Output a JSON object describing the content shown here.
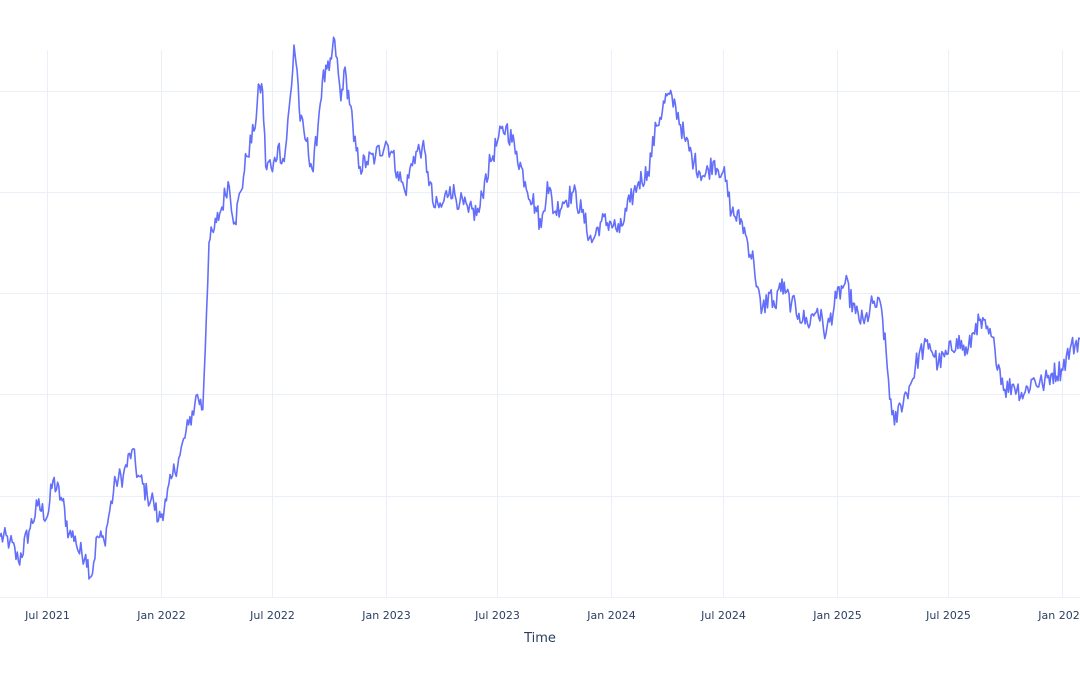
{
  "chart_data": {
    "type": "line",
    "title": "",
    "xlabel": "Time",
    "ylabel": "",
    "grid": true,
    "legend": "none",
    "xlim": [
      "2021-04-15",
      "2026-01-31"
    ],
    "ylim": [
      0,
      55
    ],
    "x_ticks": [
      {
        "date": "2021-07-01",
        "label": "Jul 2021"
      },
      {
        "date": "2022-01-01",
        "label": "Jan 2022"
      },
      {
        "date": "2022-07-01",
        "label": "Jul 2022"
      },
      {
        "date": "2023-01-01",
        "label": "Jan 2023"
      },
      {
        "date": "2023-07-01",
        "label": "Jul 2023"
      },
      {
        "date": "2024-01-01",
        "label": "Jan 2024"
      },
      {
        "date": "2024-07-01",
        "label": "Jul 2024"
      },
      {
        "date": "2025-01-01",
        "label": "Jan 2025"
      },
      {
        "date": "2025-07-01",
        "label": "Jul 2025"
      },
      {
        "date": "2026-01-01",
        "label": "Jan 2026"
      }
    ],
    "y_grid_values": [
      0,
      10,
      20,
      30,
      40,
      50
    ],
    "colors": {
      "line": "#636efa",
      "grid": "#ebf0f8",
      "text": "#2a3f5f"
    },
    "series": [
      {
        "x": [
          "2021-04-15",
          "2021-05-01",
          "2021-05-15",
          "2021-06-01",
          "2021-06-15",
          "2021-07-01",
          "2021-07-10",
          "2021-07-25",
          "2021-08-05",
          "2021-08-15",
          "2021-08-20",
          "2021-09-01",
          "2021-09-10",
          "2021-09-20",
          "2021-10-01",
          "2021-10-10",
          "2021-10-20",
          "2021-11-01",
          "2021-11-15",
          "2021-11-25",
          "2021-12-10",
          "2021-12-20",
          "2021-12-28",
          "2022-01-10",
          "2022-01-20",
          "2022-02-01",
          "2022-02-15",
          "2022-02-25",
          "2022-03-01",
          "2022-03-10",
          "2022-03-20",
          "2022-03-27",
          "2022-04-01",
          "2022-04-10",
          "2022-04-20",
          "2022-05-01",
          "2022-05-10",
          "2022-05-15",
          "2022-05-20",
          "2022-06-01",
          "2022-06-10",
          "2022-06-15",
          "2022-06-20",
          "2022-06-25",
          "2022-07-01",
          "2022-07-10",
          "2022-07-20",
          "2022-08-01",
          "2022-08-05",
          "2022-08-10",
          "2022-08-15",
          "2022-08-25",
          "2022-09-05",
          "2022-09-15",
          "2022-09-20",
          "2022-10-01",
          "2022-10-10",
          "2022-10-20",
          "2022-10-25",
          "2022-11-05",
          "2022-11-10",
          "2022-11-20",
          "2022-12-01",
          "2022-12-15",
          "2023-01-01",
          "2023-01-10",
          "2023-01-20",
          "2023-02-01",
          "2023-02-15",
          "2023-03-01",
          "2023-03-10",
          "2023-03-20",
          "2023-04-01",
          "2023-04-15",
          "2023-05-01",
          "2023-05-15",
          "2023-06-01",
          "2023-06-10",
          "2023-06-20",
          "2023-07-01",
          "2023-07-15",
          "2023-08-01",
          "2023-08-15",
          "2023-09-01",
          "2023-09-10",
          "2023-09-20",
          "2023-10-01",
          "2023-10-15",
          "2023-11-01",
          "2023-11-15",
          "2023-12-01",
          "2023-12-15",
          "2024-01-01",
          "2024-01-15",
          "2024-02-01",
          "2024-02-15",
          "2024-03-01",
          "2024-03-15",
          "2024-04-01",
          "2024-04-15",
          "2024-05-01",
          "2024-05-15",
          "2024-06-01",
          "2024-06-15",
          "2024-07-01",
          "2024-07-15",
          "2024-08-01",
          "2024-08-10",
          "2024-08-20",
          "2024-09-01",
          "2024-09-15",
          "2024-09-25",
          "2024-10-01",
          "2024-10-10",
          "2024-10-20",
          "2024-11-01",
          "2024-11-15",
          "2024-12-01",
          "2024-12-15",
          "2025-01-01",
          "2025-01-15",
          "2025-02-01",
          "2025-02-15",
          "2025-03-01",
          "2025-03-15",
          "2025-04-01",
          "2025-04-05",
          "2025-04-15",
          "2025-05-01",
          "2025-05-15",
          "2025-06-01",
          "2025-06-15",
          "2025-07-01",
          "2025-07-15",
          "2025-08-01",
          "2025-08-15",
          "2025-09-01",
          "2025-09-15",
          "2025-10-01",
          "2025-10-15",
          "2025-11-01",
          "2025-11-15",
          "2025-12-01",
          "2025-12-15",
          "2026-01-01",
          "2026-01-15",
          "2026-01-31"
        ],
        "y": [
          6.0,
          5.5,
          3.5,
          6.5,
          9.0,
          8.0,
          11.5,
          9.5,
          6.2,
          6.0,
          4.5,
          4.2,
          2.0,
          6.0,
          5.5,
          8.5,
          11.5,
          12.0,
          14.5,
          12.0,
          10.0,
          9.5,
          7.5,
          9.5,
          12.0,
          14.0,
          17.0,
          19.0,
          20.0,
          18.5,
          35.0,
          36.0,
          37.0,
          38.5,
          41.0,
          37.0,
          40.0,
          41.5,
          43.5,
          46.0,
          50.5,
          50.0,
          42.5,
          43.0,
          42.0,
          44.5,
          43.0,
          50.5,
          54.5,
          52.0,
          47.0,
          45.0,
          42.0,
          48.0,
          51.0,
          52.0,
          55.0,
          49.0,
          52.0,
          48.5,
          45.0,
          42.5,
          43.0,
          43.5,
          45.0,
          44.0,
          42.0,
          40.0,
          43.5,
          44.5,
          42.0,
          38.5,
          38.5,
          40.5,
          39.0,
          38.0,
          38.0,
          41.0,
          43.0,
          45.0,
          46.5,
          44.0,
          41.0,
          38.5,
          36.5,
          41.0,
          38.0,
          39.0,
          40.0,
          38.0,
          35.0,
          37.0,
          37.0,
          36.0,
          39.0,
          41.0,
          42.0,
          46.5,
          49.5,
          48.5,
          45.0,
          43.0,
          41.5,
          43.0,
          42.0,
          38.0,
          37.0,
          35.0,
          33.0,
          28.0,
          30.0,
          28.5,
          31.0,
          30.0,
          29.0,
          28.0,
          27.0,
          28.5,
          26.0,
          29.5,
          31.0,
          28.0,
          27.0,
          29.0,
          28.5,
          18.0,
          17.0,
          19.0,
          21.0,
          24.0,
          25.0,
          23.0,
          24.0,
          25.5,
          24.0,
          27.0,
          26.5,
          24.5,
          20.5,
          21.0,
          20.0,
          21.5,
          21.0,
          22.0,
          22.5,
          24.5,
          25.5
        ]
      }
    ]
  }
}
